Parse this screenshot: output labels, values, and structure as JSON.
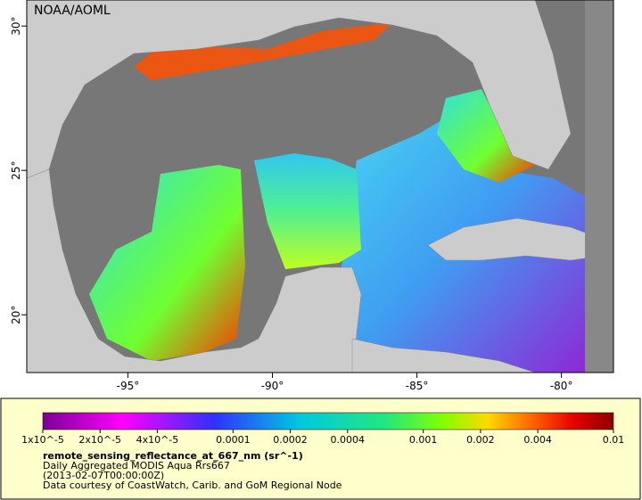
{
  "header": {
    "credit": "NOAA/AOML"
  },
  "map": {
    "xlim": [
      -98.5,
      -78.2
    ],
    "ylim": [
      18,
      30.9
    ],
    "xticks": [
      {
        "value": -95,
        "label": "-95°"
      },
      {
        "value": -90,
        "label": "-90°"
      },
      {
        "value": -85,
        "label": "-85°"
      },
      {
        "value": -80,
        "label": "-80°"
      }
    ],
    "yticks": [
      {
        "value": 20,
        "label": "20°"
      },
      {
        "value": 25,
        "label": "25°"
      },
      {
        "value": 30,
        "label": "30°"
      }
    ]
  },
  "colorbar": {
    "scale": "log",
    "lim": [
      1e-05,
      0.01
    ],
    "ticks": [
      {
        "value": 1e-05,
        "label": "1x10^-5"
      },
      {
        "value": 2e-05,
        "label": "2x10^-5"
      },
      {
        "value": 4e-05,
        "label": "4x10^-5"
      },
      0.0001,
      0.0002,
      0.0004,
      0.001,
      0.002,
      0.004,
      0.01
    ],
    "title": "remote_sensing_reflectance_at_667_nm (sr^-1)",
    "lines": [
      "Daily Aggregated MODIS Aqua Rrs667",
      "(2013-02-07T00:00:00Z)",
      "Data courtesy of CoastWatch, Carib. and GoM Regional Node"
    ]
  }
}
